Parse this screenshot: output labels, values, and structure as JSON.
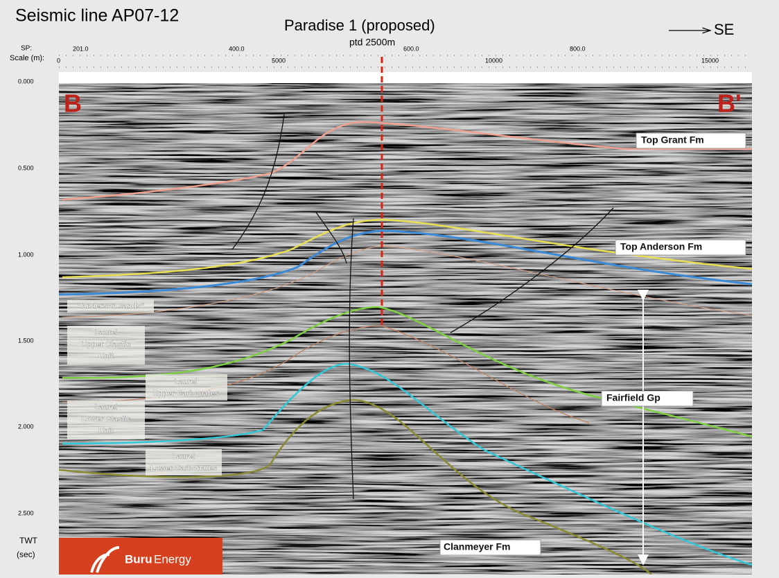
{
  "header": {
    "title": "Seismic line AP07-12",
    "well": "Paradise 1 (proposed)",
    "well_depth": "ptd 2500m",
    "direction": "SE"
  },
  "axes": {
    "sp_label": "SP:",
    "sp_ticks": [
      "201.0",
      "400.0",
      "600.0",
      "800.0"
    ],
    "scale_label": "Scale (m):",
    "scale_ticks": [
      "0",
      "5000",
      "10000",
      "15000"
    ],
    "twt_ticks": [
      "0.000",
      "0.500",
      "1.000",
      "1.500",
      "2.000",
      "2.500"
    ],
    "twt_label": [
      "TWT",
      "(sec)"
    ]
  },
  "section": {
    "start": "B",
    "end": "B'"
  },
  "horizons": [
    "Top Grant Fm",
    "Top Anderson Fm",
    "Fairfield Gp",
    "Clanmeyer Fm"
  ],
  "units": [
    [
      "\"Anderson sands\""
    ],
    [
      "Laurel",
      "Upper Clastic",
      "Unit"
    ],
    [
      "Laurel",
      "Upper Carbonates"
    ],
    [
      "Laurel",
      "Lower Clastic",
      "Unit"
    ],
    [
      "Laurel",
      "Lower Carbonates"
    ]
  ],
  "logo": {
    "name": "Buru",
    "suffix": "Energy"
  }
}
